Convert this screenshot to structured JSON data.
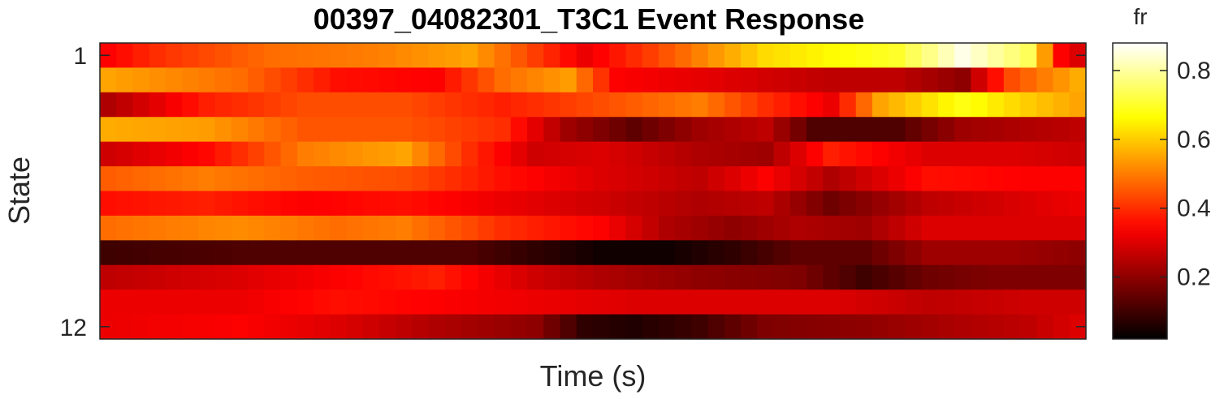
{
  "chart_data": {
    "type": "heatmap",
    "title": "00397_04082301_T3C1 Event Response",
    "xlabel": "Time (s)",
    "ylabel": "State",
    "colormap": "hot",
    "rows": 12,
    "cols": 60,
    "y_tick_values": [
      1,
      12
    ],
    "y_tick_labels": [
      "1",
      "12"
    ],
    "colorbar": {
      "label": "fr",
      "range": [
        0.02,
        0.88
      ],
      "tick_values": [
        0.2,
        0.4,
        0.6,
        0.8
      ],
      "tick_labels": [
        "0.2",
        "0.4",
        "0.6",
        "0.8"
      ]
    },
    "z_value_range": [
      0.02,
      0.88
    ],
    "row_profiles": [
      [
        [
          0,
          0.34
        ],
        [
          3,
          0.4
        ],
        [
          10,
          0.48
        ],
        [
          16,
          0.5
        ],
        [
          22,
          0.55
        ],
        [
          26,
          0.42
        ],
        [
          29,
          0.32
        ],
        [
          33,
          0.42
        ],
        [
          40,
          0.62
        ],
        [
          48,
          0.7
        ],
        [
          52,
          0.86
        ],
        [
          56,
          0.74
        ],
        [
          58,
          0.34
        ],
        [
          59,
          0.3
        ]
      ],
      [
        [
          0,
          0.55
        ],
        [
          8,
          0.48
        ],
        [
          14,
          0.36
        ],
        [
          20,
          0.34
        ],
        [
          24,
          0.48
        ],
        [
          28,
          0.54
        ],
        [
          31,
          0.34
        ],
        [
          38,
          0.3
        ],
        [
          44,
          0.26
        ],
        [
          48,
          0.26
        ],
        [
          52,
          0.2
        ],
        [
          55,
          0.44
        ],
        [
          59,
          0.56
        ]
      ],
      [
        [
          0,
          0.24
        ],
        [
          6,
          0.38
        ],
        [
          12,
          0.44
        ],
        [
          18,
          0.44
        ],
        [
          24,
          0.38
        ],
        [
          30,
          0.44
        ],
        [
          36,
          0.5
        ],
        [
          40,
          0.4
        ],
        [
          44,
          0.32
        ],
        [
          47,
          0.55
        ],
        [
          52,
          0.68
        ],
        [
          56,
          0.6
        ],
        [
          59,
          0.55
        ]
      ],
      [
        [
          0,
          0.56
        ],
        [
          6,
          0.54
        ],
        [
          12,
          0.45
        ],
        [
          18,
          0.45
        ],
        [
          24,
          0.4
        ],
        [
          28,
          0.22
        ],
        [
          32,
          0.14
        ],
        [
          36,
          0.22
        ],
        [
          40,
          0.26
        ],
        [
          43,
          0.12
        ],
        [
          48,
          0.12
        ],
        [
          52,
          0.22
        ],
        [
          59,
          0.26
        ]
      ],
      [
        [
          0,
          0.28
        ],
        [
          6,
          0.35
        ],
        [
          12,
          0.5
        ],
        [
          18,
          0.55
        ],
        [
          22,
          0.4
        ],
        [
          26,
          0.28
        ],
        [
          30,
          0.3
        ],
        [
          36,
          0.24
        ],
        [
          40,
          0.22
        ],
        [
          44,
          0.38
        ],
        [
          50,
          0.3
        ],
        [
          55,
          0.3
        ],
        [
          59,
          0.28
        ]
      ],
      [
        [
          0,
          0.46
        ],
        [
          6,
          0.5
        ],
        [
          12,
          0.46
        ],
        [
          18,
          0.44
        ],
        [
          24,
          0.36
        ],
        [
          30,
          0.3
        ],
        [
          36,
          0.26
        ],
        [
          40,
          0.34
        ],
        [
          44,
          0.24
        ],
        [
          50,
          0.36
        ],
        [
          56,
          0.34
        ],
        [
          59,
          0.34
        ]
      ],
      [
        [
          0,
          0.36
        ],
        [
          6,
          0.38
        ],
        [
          12,
          0.34
        ],
        [
          18,
          0.36
        ],
        [
          24,
          0.32
        ],
        [
          30,
          0.28
        ],
        [
          36,
          0.24
        ],
        [
          40,
          0.26
        ],
        [
          44,
          0.16
        ],
        [
          50,
          0.26
        ],
        [
          56,
          0.3
        ],
        [
          59,
          0.32
        ]
      ],
      [
        [
          0,
          0.48
        ],
        [
          8,
          0.52
        ],
        [
          14,
          0.48
        ],
        [
          18,
          0.5
        ],
        [
          24,
          0.4
        ],
        [
          30,
          0.34
        ],
        [
          34,
          0.24
        ],
        [
          38,
          0.2
        ],
        [
          42,
          0.24
        ],
        [
          46,
          0.22
        ],
        [
          50,
          0.3
        ],
        [
          56,
          0.3
        ],
        [
          59,
          0.3
        ]
      ],
      [
        [
          0,
          0.1
        ],
        [
          8,
          0.12
        ],
        [
          16,
          0.12
        ],
        [
          22,
          0.12
        ],
        [
          26,
          0.08
        ],
        [
          30,
          0.04
        ],
        [
          34,
          0.04
        ],
        [
          38,
          0.08
        ],
        [
          42,
          0.14
        ],
        [
          46,
          0.14
        ],
        [
          50,
          0.22
        ],
        [
          55,
          0.22
        ],
        [
          59,
          0.2
        ]
      ],
      [
        [
          0,
          0.26
        ],
        [
          8,
          0.3
        ],
        [
          14,
          0.34
        ],
        [
          20,
          0.38
        ],
        [
          26,
          0.28
        ],
        [
          30,
          0.24
        ],
        [
          36,
          0.2
        ],
        [
          42,
          0.18
        ],
        [
          46,
          0.1
        ],
        [
          50,
          0.16
        ],
        [
          54,
          0.18
        ],
        [
          59,
          0.18
        ]
      ],
      [
        [
          0,
          0.32
        ],
        [
          8,
          0.32
        ],
        [
          14,
          0.36
        ],
        [
          20,
          0.34
        ],
        [
          26,
          0.32
        ],
        [
          32,
          0.3
        ],
        [
          38,
          0.3
        ],
        [
          44,
          0.3
        ],
        [
          50,
          0.26
        ],
        [
          56,
          0.28
        ],
        [
          59,
          0.28
        ]
      ],
      [
        [
          0,
          0.32
        ],
        [
          8,
          0.34
        ],
        [
          14,
          0.3
        ],
        [
          20,
          0.24
        ],
        [
          26,
          0.2
        ],
        [
          29,
          0.08
        ],
        [
          32,
          0.06
        ],
        [
          36,
          0.1
        ],
        [
          40,
          0.18
        ],
        [
          46,
          0.2
        ],
        [
          52,
          0.24
        ],
        [
          56,
          0.26
        ],
        [
          59,
          0.3
        ]
      ]
    ]
  }
}
